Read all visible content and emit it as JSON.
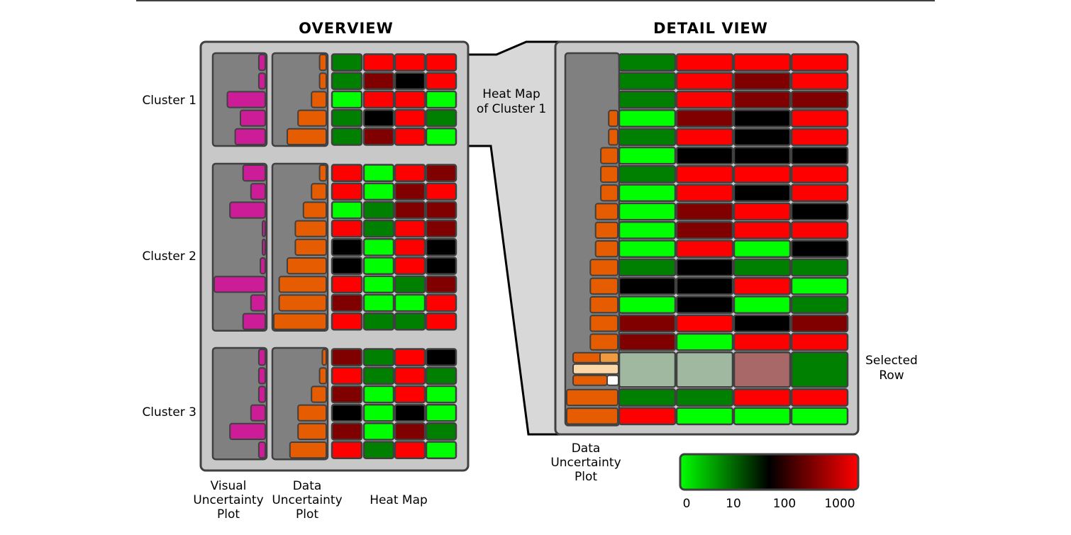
{
  "titles": {
    "overview": "OVERVIEW",
    "detail": "DETAIL VIEW"
  },
  "cluster_labels": [
    "Cluster 1",
    "Cluster 2",
    "Cluster 3"
  ],
  "annotations": {
    "heat_map_cluster1": [
      "Heat Map",
      "of Cluster 1"
    ],
    "selected_row": [
      "Selected",
      "Row"
    ],
    "detail_uncertainty": [
      "Data",
      "Uncertainty",
      "Plot"
    ]
  },
  "column_labels": {
    "visual_uncertainty": [
      "Visual",
      "Uncertainty",
      "Plot"
    ],
    "data_uncertainty": [
      "Data",
      "Uncertainty",
      "Plot"
    ],
    "heat_map": [
      "Heat Map"
    ]
  },
  "colorbar": {
    "stops": [
      "#00ff00",
      "#008000",
      "#000000",
      "#800000",
      "#ff0000"
    ],
    "tick_labels": [
      "0",
      "10",
      "100",
      "1000"
    ]
  },
  "palette": {
    "lg": "#00ff00",
    "dg": "#008000",
    "bk": "#000000",
    "dr": "#800000",
    "rd": "#ff0000",
    "pale_green": "#a0b8a0",
    "pale_red": "#a86868",
    "visual_bar": "#cc1c98",
    "data_bar": "#e65c00",
    "panel": "#c8c8c8",
    "plot_bg": "#808080"
  },
  "overview": {
    "clusters": [
      {
        "visual_uncertainty": [
          0.15,
          0.15,
          0.75,
          0.5,
          0.6
        ],
        "data_uncertainty": [
          0.15,
          0.15,
          0.3,
          0.55,
          0.75
        ],
        "heat": [
          [
            "dg",
            "rd",
            "rd",
            "rd"
          ],
          [
            "dg",
            "dr",
            "bk",
            "rd"
          ],
          [
            "lg",
            "rd",
            "rd",
            "lg"
          ],
          [
            "dg",
            "bk",
            "rd",
            "dg"
          ],
          [
            "dg",
            "dr",
            "rd",
            "lg"
          ]
        ]
      },
      {
        "visual_uncertainty": [
          0.45,
          0.3,
          0.7,
          0.06,
          0.06,
          0.12,
          1.0,
          0.3,
          0.45
        ],
        "data_uncertainty": [
          0.15,
          0.3,
          0.45,
          0.6,
          0.6,
          0.75,
          0.9,
          0.9,
          1.0
        ],
        "heat": [
          [
            "rd",
            "lg",
            "rd",
            "dr"
          ],
          [
            "rd",
            "lg",
            "dr",
            "rd"
          ],
          [
            "lg",
            "dg",
            "dr",
            "dr"
          ],
          [
            "rd",
            "dg",
            "rd",
            "dr"
          ],
          [
            "bk",
            "lg",
            "rd",
            "bk"
          ],
          [
            "bk",
            "lg",
            "rd",
            "bk"
          ],
          [
            "rd",
            "lg",
            "dg",
            "dr"
          ],
          [
            "dr",
            "lg",
            "lg",
            "rd"
          ],
          [
            "rd",
            "dg",
            "dg",
            "rd"
          ]
        ]
      },
      {
        "visual_uncertainty": [
          0.15,
          0.15,
          0.15,
          0.3,
          0.7,
          0.15
        ],
        "data_uncertainty": [
          0.1,
          0.15,
          0.3,
          0.55,
          0.55,
          0.7
        ],
        "heat": [
          [
            "dr",
            "dg",
            "rd",
            "bk"
          ],
          [
            "rd",
            "dg",
            "rd",
            "dg"
          ],
          [
            "dr",
            "lg",
            "rd",
            "lg"
          ],
          [
            "bk",
            "lg",
            "bk",
            "lg"
          ],
          [
            "dr",
            "lg",
            "dr",
            "dg"
          ],
          [
            "rd",
            "dg",
            "rd",
            "lg"
          ]
        ]
      }
    ]
  },
  "detail": {
    "rows": [
      {
        "uncertainty": 0,
        "heat": [
          "dg",
          "rd",
          "rd",
          "rd"
        ]
      },
      {
        "uncertainty": 0,
        "heat": [
          "dg",
          "rd",
          "dr",
          "rd"
        ]
      },
      {
        "uncertainty": 0,
        "heat": [
          "dg",
          "rd",
          "dr",
          "dr"
        ]
      },
      {
        "uncertainty": 0.2,
        "heat": [
          "lg",
          "dr",
          "bk",
          "rd"
        ]
      },
      {
        "uncertainty": 0.2,
        "heat": [
          "dg",
          "rd",
          "bk",
          "rd"
        ]
      },
      {
        "uncertainty": 0.35,
        "heat": [
          "lg",
          "bk",
          "bk",
          "bk"
        ]
      },
      {
        "uncertainty": 0.35,
        "heat": [
          "dg",
          "rd",
          "rd",
          "rd"
        ]
      },
      {
        "uncertainty": 0.35,
        "heat": [
          "lg",
          "rd",
          "bk",
          "rd"
        ]
      },
      {
        "uncertainty": 0.45,
        "heat": [
          "lg",
          "dr",
          "rd",
          "bk"
        ]
      },
      {
        "uncertainty": 0.45,
        "heat": [
          "lg",
          "dr",
          "rd",
          "rd"
        ]
      },
      {
        "uncertainty": 0.45,
        "heat": [
          "lg",
          "rd",
          "lg",
          "bk"
        ]
      },
      {
        "uncertainty": 0.55,
        "heat": [
          "dg",
          "bk",
          "dg",
          "dg"
        ]
      },
      {
        "uncertainty": 0.55,
        "heat": [
          "bk",
          "bk",
          "rd",
          "lg"
        ]
      },
      {
        "uncertainty": 0.55,
        "heat": [
          "lg",
          "bk",
          "lg",
          "dg"
        ]
      },
      {
        "uncertainty": 0.55,
        "heat": [
          "dr",
          "rd",
          "bk",
          "dr"
        ]
      },
      {
        "uncertainty": 0.55,
        "heat": [
          "dr",
          "lg",
          "rd",
          "rd"
        ]
      },
      {
        "selected": true,
        "heat": [
          "pale_green",
          "pale_green",
          "pale_red",
          "dg"
        ]
      },
      {
        "uncertainty": 1.0,
        "heat": [
          "dg",
          "dg",
          "rd",
          "rd"
        ]
      },
      {
        "uncertainty": 1.0,
        "heat": [
          "rd",
          "lg",
          "lg",
          "lg"
        ]
      }
    ]
  }
}
